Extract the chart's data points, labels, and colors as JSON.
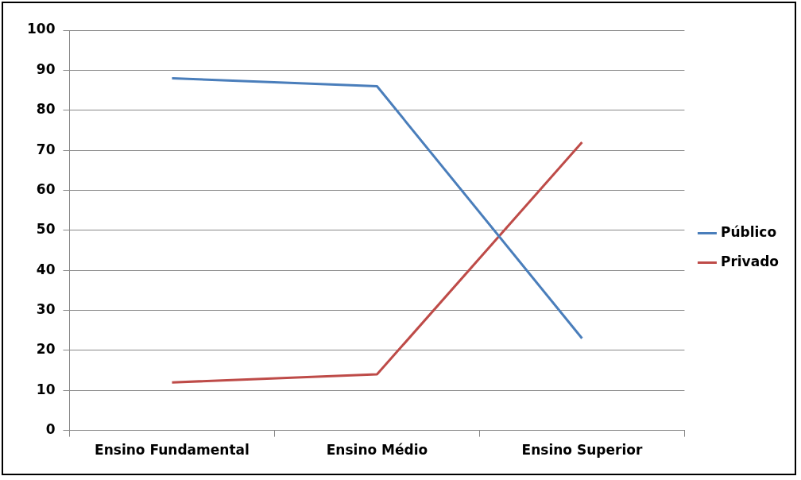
{
  "chart_data": {
    "type": "line",
    "categories": [
      "Ensino Fundamental",
      "Ensino Médio",
      "Ensino Superior"
    ],
    "series": [
      {
        "name": "Público",
        "color": "#4a7ebb",
        "values": [
          88,
          86,
          23
        ]
      },
      {
        "name": "Privado",
        "color": "#be4b48",
        "values": [
          12,
          14,
          72
        ]
      }
    ],
    "ylim": [
      0,
      100
    ],
    "yticks": [
      0,
      10,
      20,
      30,
      40,
      50,
      60,
      70,
      80,
      90,
      100
    ],
    "grid": "y",
    "legend": "right",
    "marker": "none"
  }
}
